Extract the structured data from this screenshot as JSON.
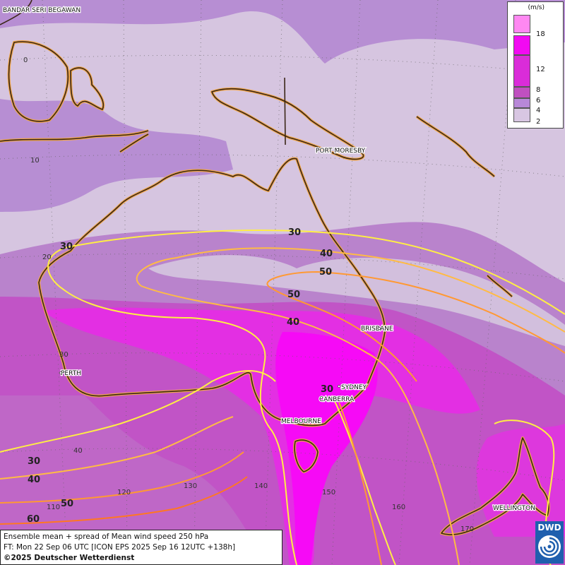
{
  "map": {
    "title_line": "Ensemble mean + spread of Mean wind speed 250 hPa",
    "forecast_line": "FT: Mon 22 Sep 06 UTC [ICON EPS 2025 Sep 16 12UTC +138h]",
    "copyright": "©2025 Deutscher Wetterdienst",
    "logo_text": "DWD",
    "cities": [
      "BANDAR SERI BEGAWAN",
      "PORT MORESBY",
      "BRISBANE",
      "PERTH",
      "SYDNEY",
      "CANBERRA",
      "MELBOURNE",
      "WELLINGTON"
    ],
    "lat_labels": [
      "0",
      "10",
      "20",
      "30",
      "40"
    ],
    "lon_labels": [
      "110",
      "120",
      "130",
      "140",
      "150",
      "160",
      "170"
    ],
    "contour_labels": [
      "30",
      "40",
      "50",
      "50",
      "40",
      "30",
      "30",
      "40",
      "50",
      "60"
    ],
    "contour_colors": {
      "30": "#ffee44",
      "40": "#ffbb44",
      "50": "#ff9933",
      "60": "#ff7722"
    }
  },
  "legend": {
    "unit": "(m/s)",
    "levels": [
      "18",
      "12",
      "8",
      "6",
      "4",
      "2"
    ],
    "colors": [
      "#ff88f2",
      "#f20af2",
      "#da2cd9",
      "#c050c0",
      "#b888d8",
      "#d8c6e2"
    ]
  }
}
